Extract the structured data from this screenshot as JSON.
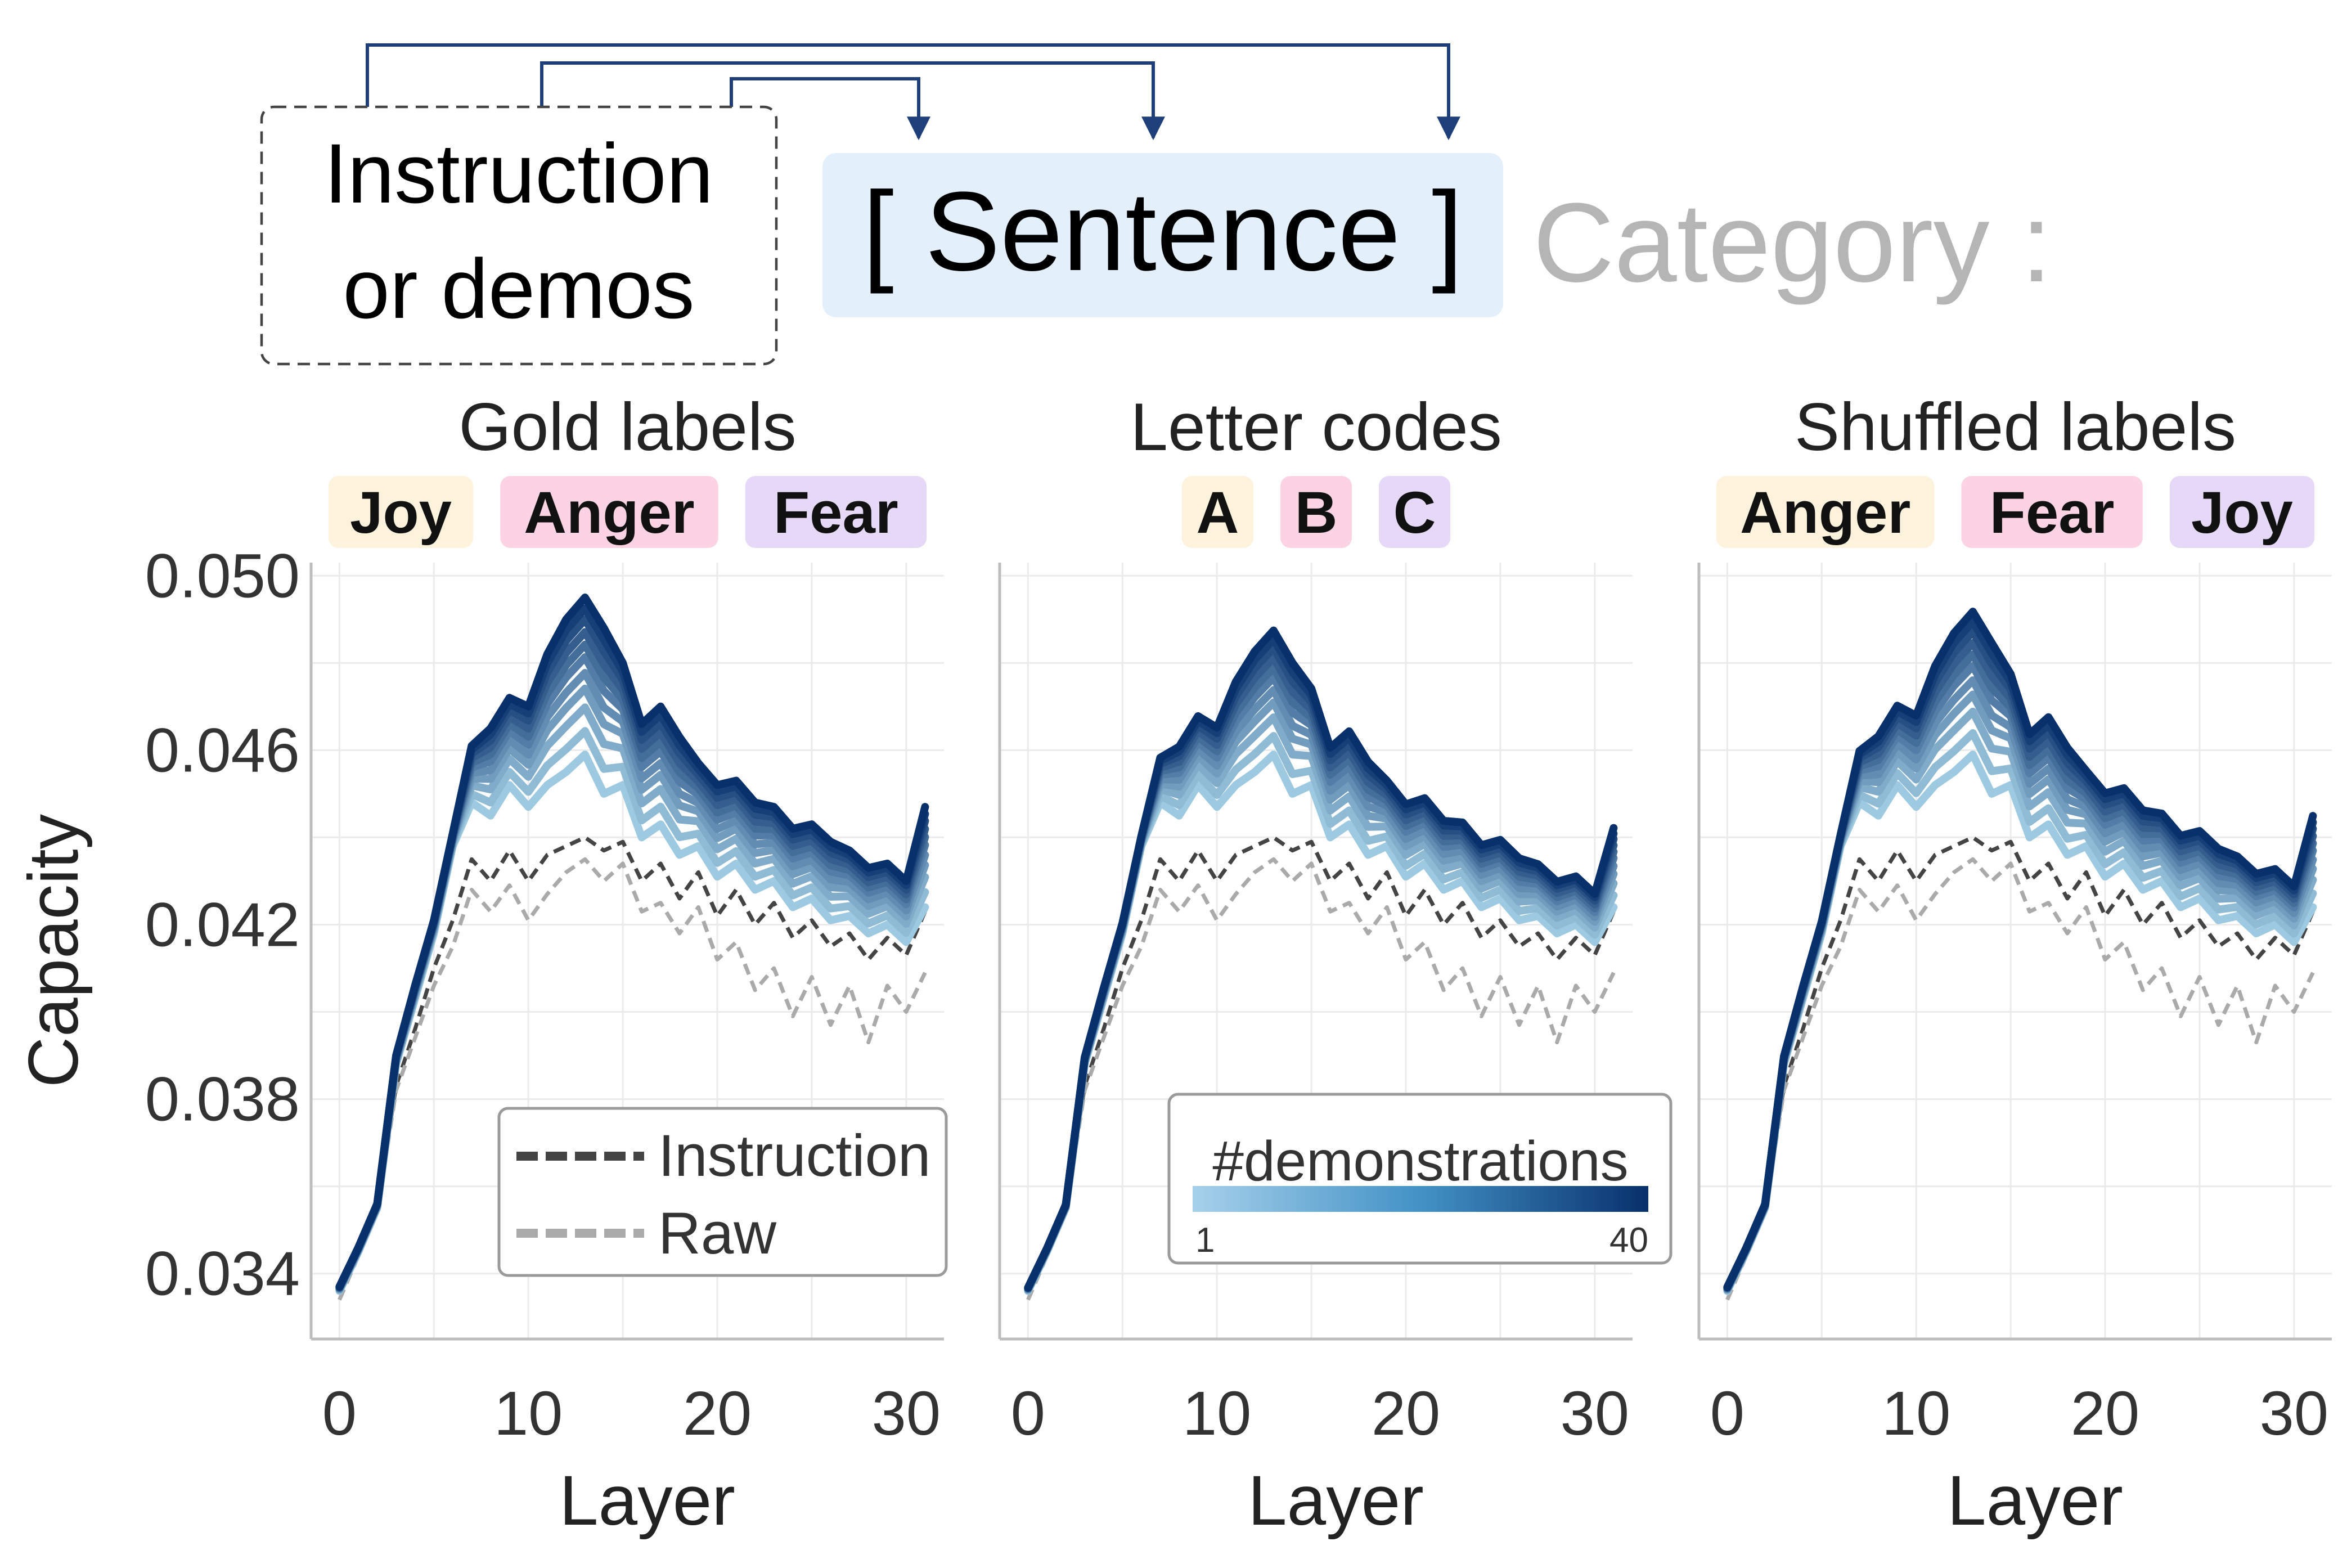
{
  "header": {
    "instruction_box_line1": "Instruction",
    "instruction_box_line2": "or demos",
    "sentence_label": "[ Sentence ]",
    "category_label": "Category :"
  },
  "colors": {
    "arrow": "#1f3f7a",
    "sentence_bg": "#e3f0fc",
    "category_text": "#b5b5b5",
    "instruction_line": "#444444",
    "raw_line": "#aaaaaa",
    "blue_light": "#9ecae1",
    "blue_dark": "#08306b",
    "label_yellow": "#fdf3dc",
    "label_pink": "#fcd3e3",
    "label_purple": "#e6d9f7"
  },
  "legend_left": {
    "instruction": "Instruction",
    "raw": "Raw"
  },
  "legend_right": {
    "title": "#demonstrations",
    "min": "1",
    "max": "40"
  },
  "chart_data": [
    {
      "type": "line",
      "title": "Gold labels",
      "labels": [
        {
          "text": "Joy",
          "color": "yellow"
        },
        {
          "text": "Anger",
          "color": "pink"
        },
        {
          "text": "Fear",
          "color": "purple"
        }
      ],
      "xlabel": "Layer",
      "ylabel": "Capacity",
      "xlim": [
        -1.5,
        32
      ],
      "ylim": [
        0.0325,
        0.0503
      ],
      "xticks": [
        0,
        10,
        20,
        30
      ],
      "yticks": [
        0.034,
        0.038,
        0.042,
        0.046,
        0.05
      ],
      "ytick_labels": [
        "0.034",
        "0.038",
        "0.042",
        "0.046",
        "0.050"
      ],
      "peak_level": 1.0,
      "series": [
        {
          "name": "Instruction",
          "style": "dashed-dark",
          "x": [
            0,
            1,
            2,
            3,
            4,
            5,
            6,
            7,
            8,
            9,
            10,
            11,
            12,
            13,
            14,
            15,
            16,
            17,
            18,
            19,
            20,
            21,
            22,
            23,
            24,
            25,
            26,
            27,
            28,
            29,
            30,
            31
          ],
          "values": [
            0.0336,
            0.0345,
            0.0355,
            0.0383,
            0.0396,
            0.041,
            0.0421,
            0.0435,
            0.043,
            0.0437,
            0.043,
            0.0436,
            0.0438,
            0.044,
            0.0437,
            0.0439,
            0.043,
            0.0434,
            0.0426,
            0.0432,
            0.0422,
            0.0428,
            0.042,
            0.0425,
            0.0417,
            0.0421,
            0.0415,
            0.0418,
            0.0412,
            0.0417,
            0.0413,
            0.0423
          ]
        },
        {
          "name": "Raw",
          "style": "dashed-light",
          "x": [
            0,
            1,
            2,
            3,
            4,
            5,
            6,
            7,
            8,
            9,
            10,
            11,
            12,
            13,
            14,
            15,
            16,
            17,
            18,
            19,
            20,
            21,
            22,
            23,
            24,
            25,
            26,
            27,
            28,
            29,
            30,
            31
          ],
          "values": [
            0.0334,
            0.0344,
            0.0354,
            0.0382,
            0.0394,
            0.0406,
            0.0415,
            0.0428,
            0.0423,
            0.0429,
            0.0421,
            0.0427,
            0.0432,
            0.0435,
            0.043,
            0.0434,
            0.0423,
            0.0425,
            0.0418,
            0.0424,
            0.0412,
            0.0416,
            0.0405,
            0.041,
            0.0399,
            0.0408,
            0.0397,
            0.0406,
            0.0393,
            0.0406,
            0.04,
            0.0409
          ]
        }
      ]
    },
    {
      "type": "line",
      "title": "Letter codes",
      "labels": [
        {
          "text": "A",
          "color": "yellow"
        },
        {
          "text": "B",
          "color": "pink"
        },
        {
          "text": "C",
          "color": "purple"
        }
      ],
      "xlabel": "Layer",
      "ylabel": "",
      "xlim": [
        -1.5,
        32
      ],
      "ylim": [
        0.0325,
        0.0503
      ],
      "xticks": [
        0,
        10,
        20,
        30
      ],
      "yticks": [],
      "ytick_labels": [],
      "peak_level": 0.79,
      "series": [
        {
          "name": "Instruction",
          "style": "dashed-dark",
          "x": [
            0,
            1,
            2,
            3,
            4,
            5,
            6,
            7,
            8,
            9,
            10,
            11,
            12,
            13,
            14,
            15,
            16,
            17,
            18,
            19,
            20,
            21,
            22,
            23,
            24,
            25,
            26,
            27,
            28,
            29,
            30,
            31
          ],
          "values": [
            0.0336,
            0.0345,
            0.0355,
            0.0383,
            0.0396,
            0.041,
            0.0421,
            0.0435,
            0.043,
            0.0437,
            0.043,
            0.0436,
            0.0438,
            0.044,
            0.0437,
            0.0439,
            0.043,
            0.0434,
            0.0426,
            0.0432,
            0.0422,
            0.0428,
            0.042,
            0.0425,
            0.0417,
            0.0421,
            0.0415,
            0.0418,
            0.0412,
            0.0417,
            0.0413,
            0.0423
          ]
        },
        {
          "name": "Raw",
          "style": "dashed-light",
          "x": [
            0,
            1,
            2,
            3,
            4,
            5,
            6,
            7,
            8,
            9,
            10,
            11,
            12,
            13,
            14,
            15,
            16,
            17,
            18,
            19,
            20,
            21,
            22,
            23,
            24,
            25,
            26,
            27,
            28,
            29,
            30,
            31
          ],
          "values": [
            0.0334,
            0.0344,
            0.0354,
            0.0382,
            0.0394,
            0.0406,
            0.0415,
            0.0428,
            0.0423,
            0.0429,
            0.0421,
            0.0427,
            0.0432,
            0.0435,
            0.043,
            0.0434,
            0.0423,
            0.0425,
            0.0418,
            0.0424,
            0.0412,
            0.0416,
            0.0405,
            0.041,
            0.0399,
            0.0408,
            0.0397,
            0.0406,
            0.0393,
            0.0406,
            0.04,
            0.0409
          ]
        }
      ]
    },
    {
      "type": "line",
      "title": "Shuffled labels",
      "labels": [
        {
          "text": "Anger",
          "color": "yellow"
        },
        {
          "text": "Fear",
          "color": "pink"
        },
        {
          "text": "Joy",
          "color": "purple"
        }
      ],
      "xlabel": "Layer",
      "ylabel": "",
      "xlim": [
        -1.5,
        32
      ],
      "ylim": [
        0.0325,
        0.0503
      ],
      "xticks": [
        0,
        10,
        20,
        30
      ],
      "yticks": [],
      "ytick_labels": [],
      "peak_level": 0.91,
      "series": [
        {
          "name": "Instruction",
          "style": "dashed-dark",
          "x": [
            0,
            1,
            2,
            3,
            4,
            5,
            6,
            7,
            8,
            9,
            10,
            11,
            12,
            13,
            14,
            15,
            16,
            17,
            18,
            19,
            20,
            21,
            22,
            23,
            24,
            25,
            26,
            27,
            28,
            29,
            30,
            31
          ],
          "values": [
            0.0336,
            0.0345,
            0.0355,
            0.0383,
            0.0396,
            0.041,
            0.0421,
            0.0435,
            0.043,
            0.0437,
            0.043,
            0.0436,
            0.0438,
            0.044,
            0.0437,
            0.0439,
            0.043,
            0.0434,
            0.0426,
            0.0432,
            0.0422,
            0.0428,
            0.042,
            0.0425,
            0.0417,
            0.0421,
            0.0415,
            0.0418,
            0.0412,
            0.0417,
            0.0413,
            0.0423
          ]
        },
        {
          "name": "Raw",
          "style": "dashed-light",
          "x": [
            0,
            1,
            2,
            3,
            4,
            5,
            6,
            7,
            8,
            9,
            10,
            11,
            12,
            13,
            14,
            15,
            16,
            17,
            18,
            19,
            20,
            21,
            22,
            23,
            24,
            25,
            26,
            27,
            28,
            29,
            30,
            31
          ],
          "values": [
            0.0334,
            0.0344,
            0.0354,
            0.0382,
            0.0394,
            0.0406,
            0.0415,
            0.0428,
            0.0423,
            0.0429,
            0.0421,
            0.0427,
            0.0432,
            0.0435,
            0.043,
            0.0434,
            0.0423,
            0.0425,
            0.0418,
            0.0424,
            0.0412,
            0.0416,
            0.0405,
            0.041,
            0.0399,
            0.0408,
            0.0397,
            0.0406,
            0.0393,
            0.0406,
            0.04,
            0.0409
          ]
        }
      ]
    }
  ],
  "demo_curves": {
    "x": [
      0,
      1,
      2,
      3,
      4,
      5,
      6,
      7,
      8,
      9,
      10,
      11,
      12,
      13,
      14,
      15,
      16,
      17,
      18,
      19,
      20,
      21,
      22,
      23,
      24,
      25,
      26,
      27,
      28,
      29,
      30,
      31
    ],
    "base": [
      0.0336,
      0.0345,
      0.0355,
      0.0388,
      0.0403,
      0.0418,
      0.0438,
      0.0448,
      0.0445,
      0.0452,
      0.0447,
      0.0452,
      0.0455,
      0.0459,
      0.045,
      0.0452,
      0.044,
      0.0443,
      0.0436,
      0.0438,
      0.0431,
      0.0434,
      0.0428,
      0.043,
      0.0424,
      0.0426,
      0.0421,
      0.0422,
      0.0418,
      0.042,
      0.0416,
      0.0424
    ],
    "peak": [
      0.0337,
      0.0346,
      0.0356,
      0.039,
      0.0406,
      0.0421,
      0.0441,
      0.0461,
      0.0465,
      0.0472,
      0.047,
      0.0482,
      0.049,
      0.0495,
      0.0488,
      0.048,
      0.0466,
      0.047,
      0.0463,
      0.0457,
      0.0452,
      0.0453,
      0.0448,
      0.0447,
      0.0442,
      0.0443,
      0.0439,
      0.0437,
      0.0433,
      0.0434,
      0.043,
      0.0447
    ],
    "levels": [
      0.0,
      0.15,
      0.3,
      0.42,
      0.52,
      0.62,
      0.7,
      0.78,
      0.86,
      0.93,
      1.0
    ]
  }
}
